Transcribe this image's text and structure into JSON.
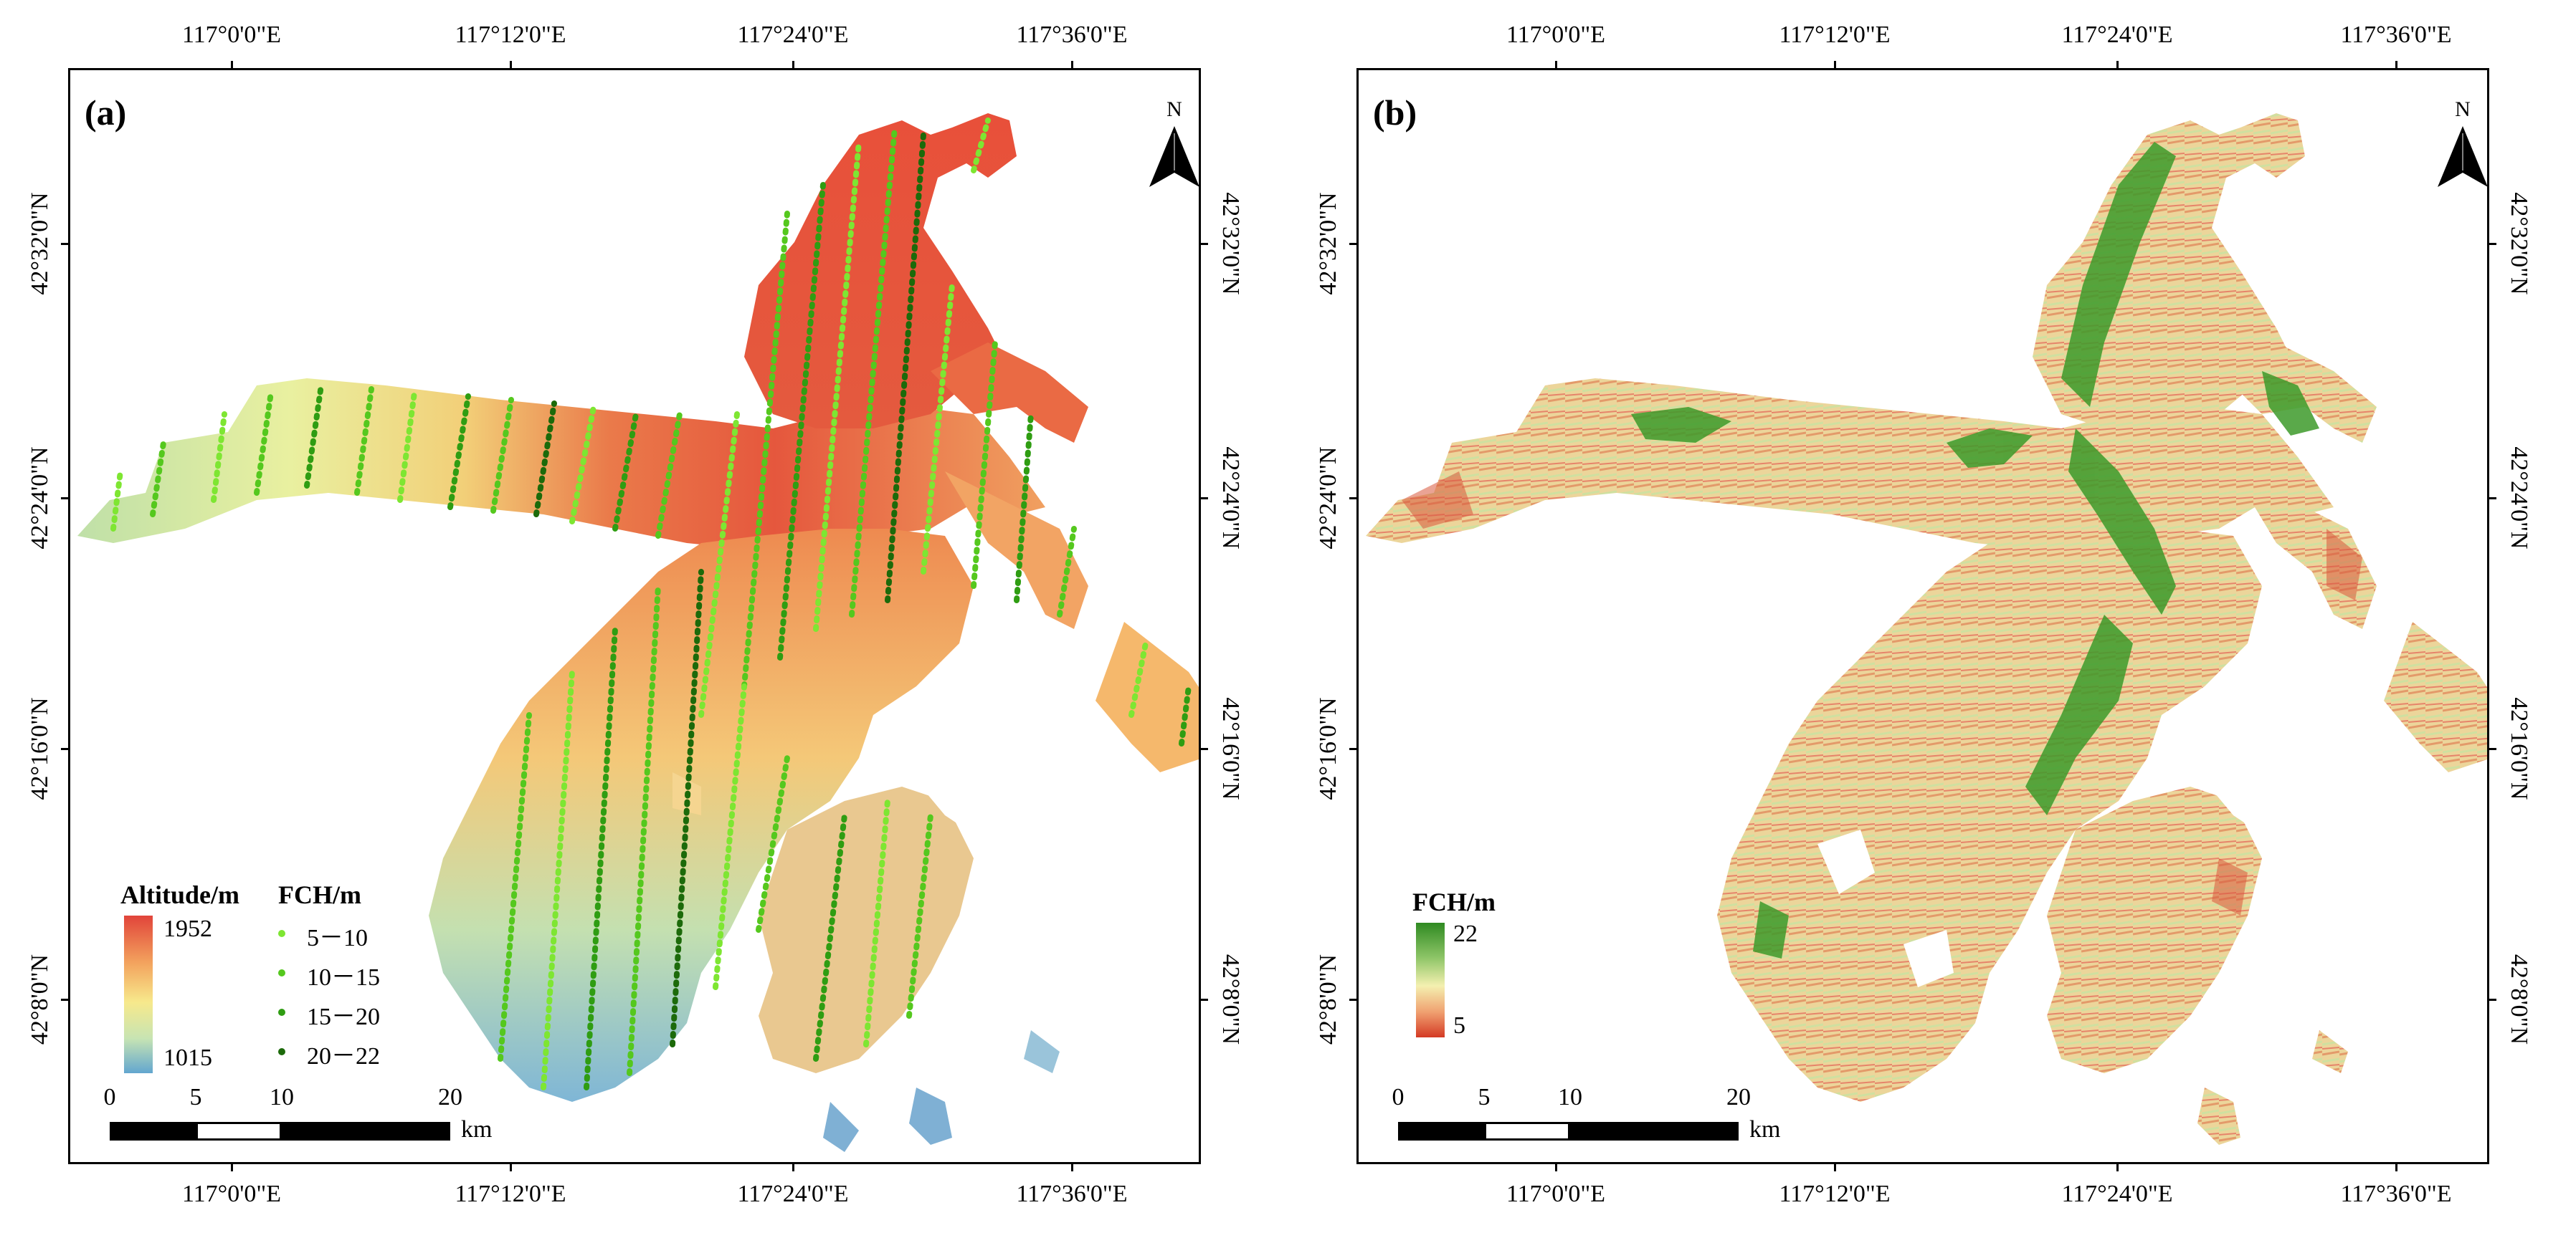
{
  "axes": {
    "lon_labels": [
      "117°0'0\"E",
      "117°12'0\"E",
      "117°24'0\"E",
      "117°36'0\"E"
    ],
    "lat_labels": [
      "42°32'0\"N",
      "42°24'0\"N",
      "42°16'0\"N",
      "42°8'0\"N"
    ]
  },
  "panel_a": {
    "label": "(a)",
    "north": "N",
    "altitude_legend": {
      "title": "Altitude/m",
      "max": "1952",
      "min": "1015",
      "colors": [
        "#e1443a",
        "#f3a35e",
        "#f7e98c",
        "#c7e4b3",
        "#62a6cf"
      ]
    },
    "fch_legend": {
      "title": "FCH/m",
      "classes": [
        {
          "label": "5－10",
          "color": "#7ee632"
        },
        {
          "label": "10－15",
          "color": "#55c81e"
        },
        {
          "label": "15－20",
          "color": "#2f9d12"
        },
        {
          "label": "20－22",
          "color": "#1c6a0a"
        }
      ]
    },
    "scale": {
      "labels": [
        "0",
        "5",
        "10",
        "20"
      ],
      "unit": "km"
    }
  },
  "panel_b": {
    "label": "(b)",
    "north": "N",
    "fch_legend": {
      "title": "FCH/m",
      "max": "22",
      "min": "5",
      "colors": [
        "#2f8a22",
        "#8cc466",
        "#f4f0b0",
        "#f0a070",
        "#d43a24"
      ]
    },
    "scale": {
      "labels": [
        "0",
        "5",
        "10",
        "20"
      ],
      "unit": "km"
    }
  }
}
